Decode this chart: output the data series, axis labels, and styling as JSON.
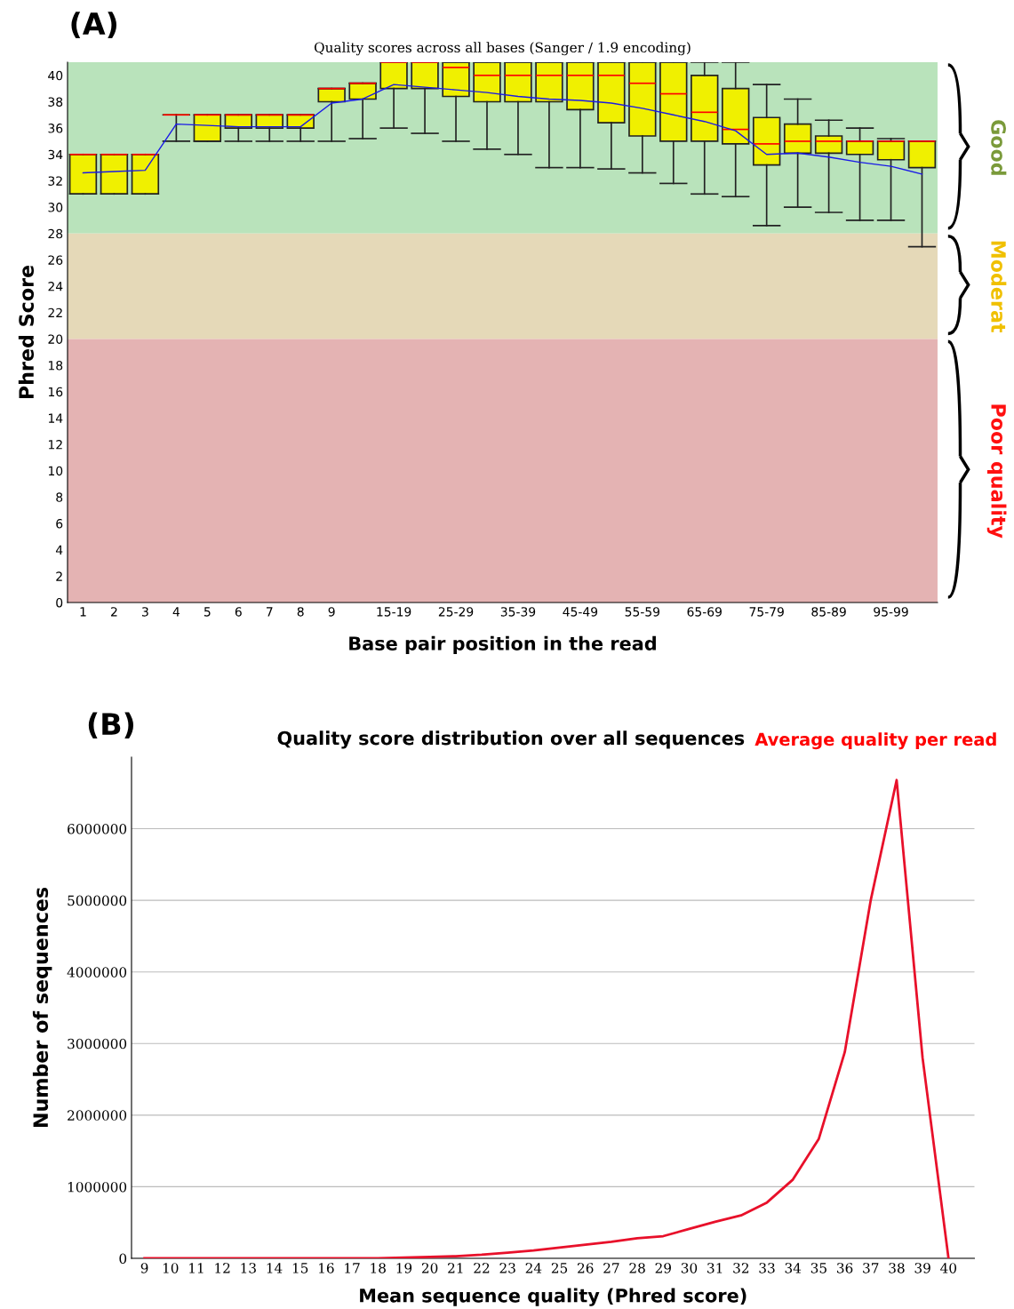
{
  "chart_data": [
    {
      "type": "box",
      "title": "Quality scores across all bases (Sanger / 1.9 encoding)",
      "xlabel": "Base pair position in the read",
      "ylabel": "Phred Score",
      "categories": [
        "1",
        "2",
        "3",
        "4",
        "5",
        "6",
        "7",
        "8",
        "9",
        null,
        "15-19",
        null,
        "25-29",
        null,
        "35-39",
        null,
        "45-49",
        null,
        "55-59",
        null,
        "65-69",
        null,
        "75-79",
        null,
        "85-89",
        null,
        "95-99",
        null
      ],
      "series": [
        {
          "color": "#f0f000",
          "boxes": [
            {
              "low": 31,
              "q1": 31,
              "median": 34,
              "q3": 34,
              "high": 34
            },
            {
              "low": 31,
              "q1": 31,
              "median": 34,
              "q3": 34,
              "high": 34
            },
            {
              "low": 31,
              "q1": 31,
              "median": 34,
              "q3": 34,
              "high": 34
            },
            {
              "low": 35,
              "q1": 37,
              "median": 37,
              "q3": 37,
              "high": 37
            },
            {
              "low": 35,
              "q1": 35,
              "median": 37,
              "q3": 37,
              "high": 37
            },
            {
              "low": 35,
              "q1": 36,
              "median": 37,
              "q3": 37,
              "high": 37
            },
            {
              "low": 35,
              "q1": 36,
              "median": 37,
              "q3": 37,
              "high": 37
            },
            {
              "low": 35,
              "q1": 36,
              "median": 37,
              "q3": 37,
              "high": 37
            },
            {
              "low": 35,
              "q1": 38,
              "median": 39,
              "q3": 39,
              "high": 39
            },
            {
              "low": 35.2,
              "q1": 38.2,
              "median": 39.4,
              "q3": 39.4,
              "high": 39.4
            },
            {
              "low": 36,
              "q1": 39,
              "median": 41,
              "q3": 41,
              "high": 41
            },
            {
              "low": 35.6,
              "q1": 39,
              "median": 41,
              "q3": 41,
              "high": 41
            },
            {
              "low": 35,
              "q1": 38.4,
              "median": 40.6,
              "q3": 41,
              "high": 41
            },
            {
              "low": 34.4,
              "q1": 38,
              "median": 40,
              "q3": 41,
              "high": 41
            },
            {
              "low": 34,
              "q1": 38,
              "median": 40,
              "q3": 41,
              "high": 41
            },
            {
              "low": 33,
              "q1": 38,
              "median": 40,
              "q3": 41,
              "high": 41
            },
            {
              "low": 33,
              "q1": 37.4,
              "median": 40,
              "q3": 41,
              "high": 41
            },
            {
              "low": 32.9,
              "q1": 36.4,
              "median": 40,
              "q3": 41,
              "high": 41
            },
            {
              "low": 32.6,
              "q1": 35.4,
              "median": 39.4,
              "q3": 41,
              "high": 41
            },
            {
              "low": 31.8,
              "q1": 35,
              "median": 38.6,
              "q3": 41,
              "high": 41
            },
            {
              "low": 31,
              "q1": 35,
              "median": 37.2,
              "q3": 40,
              "high": 41
            },
            {
              "low": 30.8,
              "q1": 34.8,
              "median": 35.9,
              "q3": 39,
              "high": 41
            },
            {
              "low": 28.6,
              "q1": 33.2,
              "median": 34.8,
              "q3": 36.8,
              "high": 39.3
            },
            {
              "low": 30,
              "q1": 34.1,
              "median": 35,
              "q3": 36.3,
              "high": 38.2
            },
            {
              "low": 29.6,
              "q1": 34.1,
              "median": 35,
              "q3": 35.4,
              "high": 36.6
            },
            {
              "low": 29,
              "q1": 34,
              "median": 35,
              "q3": 35,
              "high": 36
            },
            {
              "low": 29,
              "q1": 33.6,
              "median": 35,
              "q3": 35,
              "high": 35.2
            },
            {
              "low": 27,
              "q1": 33,
              "median": 35,
              "q3": 35,
              "high": 35
            }
          ]
        },
        {
          "type": "line",
          "color": "#1a1ae6",
          "values": [
            32.6,
            32.7,
            32.8,
            36.3,
            36.2,
            36.1,
            36.1,
            36.1,
            37.9,
            38.2,
            39.3,
            39.1,
            38.9,
            38.7,
            38.4,
            38.2,
            38.1,
            37.9,
            37.5,
            37,
            36.5,
            35.8,
            34,
            34.1,
            33.8,
            33.4,
            33.1,
            32.5
          ]
        }
      ],
      "ylim": [
        0,
        41
      ],
      "yticks": [
        0,
        2,
        4,
        6,
        8,
        10,
        12,
        14,
        16,
        18,
        20,
        22,
        24,
        26,
        28,
        30,
        32,
        34,
        36,
        38,
        40
      ],
      "bands": [
        {
          "axis": "y",
          "from": 28,
          "to": 41,
          "color": "#b9e3bb"
        },
        {
          "axis": "y",
          "from": 20,
          "to": 28,
          "color": "#e5d9b8"
        },
        {
          "axis": "y",
          "from": 0,
          "to": 20,
          "color": "#e4b3b3"
        }
      ],
      "annotations": [
        "(A)",
        "Good",
        "Moderat",
        "Poor quality"
      ],
      "grid": false,
      "legend": false
    },
    {
      "type": "line",
      "title": "Quality score distribution over all sequences",
      "xlabel": "Mean sequence quality (Phred score)",
      "ylabel": "Number of sequences",
      "x": [
        9,
        10,
        11,
        12,
        13,
        14,
        15,
        16,
        17,
        18,
        19,
        20,
        21,
        22,
        23,
        24,
        25,
        26,
        27,
        28,
        29,
        30,
        31,
        32,
        33,
        34,
        35,
        36,
        37,
        38,
        39,
        40
      ],
      "series": [
        {
          "color": "#e8102a",
          "values": [
            0,
            0,
            0,
            0,
            0,
            0,
            0,
            0,
            0,
            0,
            10000,
            20000,
            30000,
            50000,
            80000,
            110000,
            150000,
            190000,
            230000,
            280000,
            310000,
            410000,
            510000,
            600000,
            780000,
            1100000,
            1670000,
            2880000,
            5000000,
            6680000,
            2800000,
            0
          ]
        }
      ],
      "xlim": [
        8.5,
        41
      ],
      "xticks": [
        9,
        10,
        11,
        12,
        13,
        14,
        15,
        16,
        17,
        18,
        19,
        20,
        21,
        22,
        23,
        24,
        25,
        26,
        27,
        28,
        29,
        30,
        31,
        32,
        33,
        34,
        35,
        36,
        37,
        38,
        39,
        40
      ],
      "ylim": [
        0,
        7000000
      ],
      "yticks": [
        0,
        1000000,
        2000000,
        3000000,
        4000000,
        5000000,
        6000000
      ],
      "annotations": [
        "(B)",
        "Average quality per read"
      ],
      "grid": "y",
      "legend": false,
      "marker": "none",
      "line_style": "solid"
    }
  ]
}
